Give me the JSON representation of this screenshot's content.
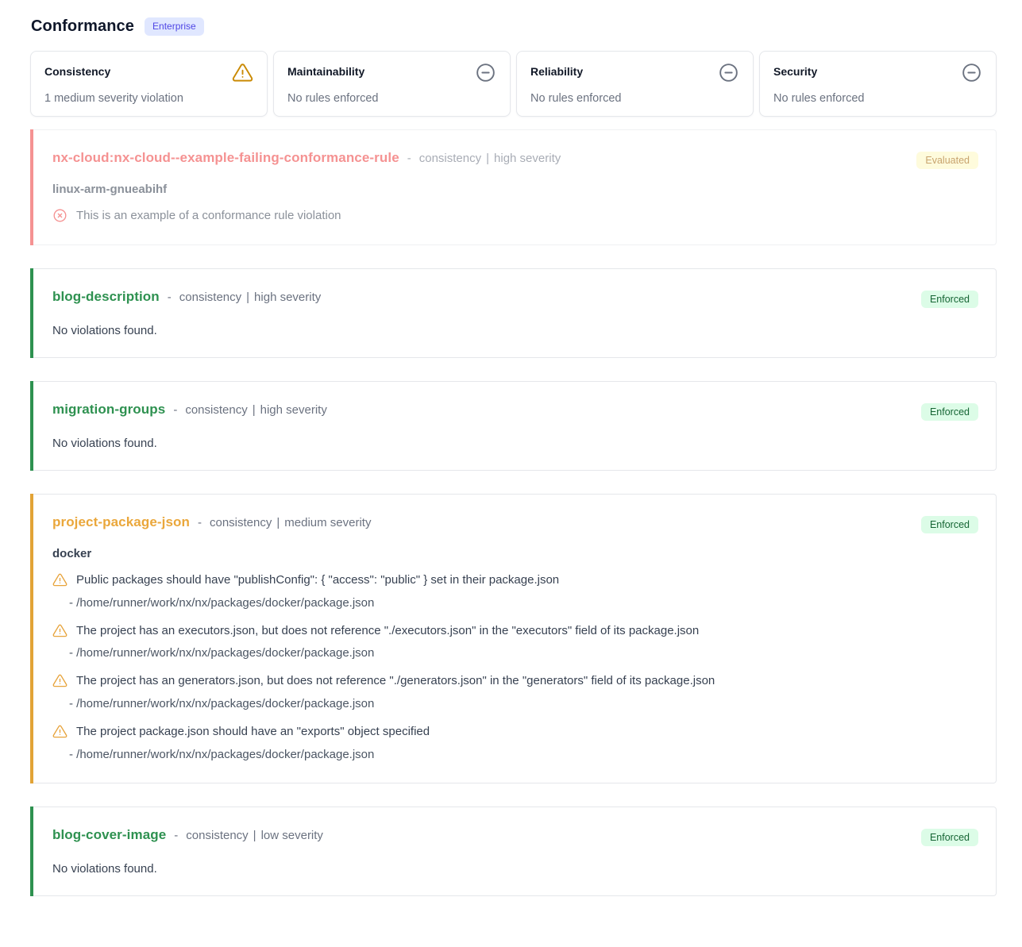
{
  "page": {
    "title": "Conformance",
    "plan_badge": "Enterprise"
  },
  "colors": {
    "red": "#ef4444",
    "green": "#2e9150",
    "amber": "#eaa73b",
    "amber_stripe": "#e2a336"
  },
  "summary_cards": [
    {
      "title": "Consistency",
      "status": "1 medium severity violation",
      "icon": "warning-triangle-icon"
    },
    {
      "title": "Maintainability",
      "status": "No rules enforced",
      "icon": "minus-circle-icon"
    },
    {
      "title": "Reliability",
      "status": "No rules enforced",
      "icon": "minus-circle-icon"
    },
    {
      "title": "Security",
      "status": "No rules enforced",
      "icon": "minus-circle-icon"
    }
  ],
  "rules": [
    {
      "name": "nx-cloud:nx-cloud--example-failing-conformance-rule",
      "category": "consistency",
      "severity": "high severity",
      "badge": "Evaluated",
      "badge_style": "evaluated",
      "color": "red",
      "faded": true,
      "project": "linux-arm-gnueabihf",
      "violation_icon": "x-circle-icon",
      "violations": [
        {
          "message": "This is an example of a conformance rule violation"
        }
      ]
    },
    {
      "name": "blog-description",
      "category": "consistency",
      "severity": "high severity",
      "badge": "Enforced",
      "badge_style": "enforced",
      "color": "green",
      "empty_message": "No violations found."
    },
    {
      "name": "migration-groups",
      "category": "consistency",
      "severity": "high severity",
      "badge": "Enforced",
      "badge_style": "enforced",
      "color": "green",
      "empty_message": "No violations found."
    },
    {
      "name": "project-package-json",
      "category": "consistency",
      "severity": "medium severity",
      "badge": "Enforced",
      "badge_style": "enforced",
      "color": "amber",
      "project": "docker",
      "violation_icon": "warning-triangle-icon",
      "violations": [
        {
          "message": "Public packages should have \"publishConfig\": { \"access\": \"public\" } set in their package.json",
          "path": "- /home/runner/work/nx/nx/packages/docker/package.json"
        },
        {
          "message": "The project has an executors.json, but does not reference \"./executors.json\" in the \"executors\" field of its package.json",
          "path": "- /home/runner/work/nx/nx/packages/docker/package.json"
        },
        {
          "message": "The project has an generators.json, but does not reference \"./generators.json\" in the \"generators\" field of its package.json",
          "path": "- /home/runner/work/nx/nx/packages/docker/package.json"
        },
        {
          "message": "The project package.json should have an \"exports\" object specified",
          "path": "- /home/runner/work/nx/nx/packages/docker/package.json"
        }
      ]
    },
    {
      "name": "blog-cover-image",
      "category": "consistency",
      "severity": "low severity",
      "badge": "Enforced",
      "badge_style": "enforced",
      "color": "green",
      "empty_message": "No violations found."
    }
  ]
}
